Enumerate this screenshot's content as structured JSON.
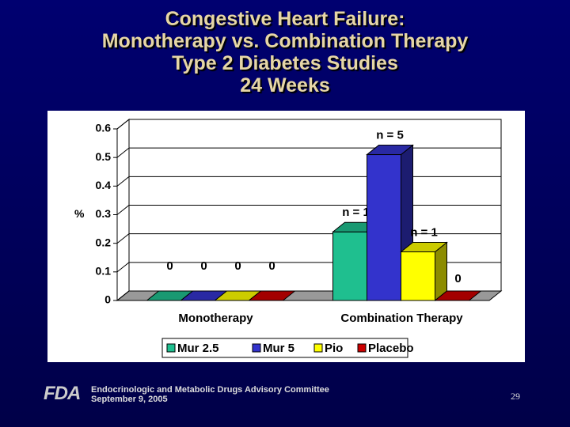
{
  "title": [
    "Congestive Heart Failure:",
    "Monotherapy vs. Combination Therapy",
    "Type 2 Diabetes Studies",
    "24 Weeks"
  ],
  "chart_data": {
    "type": "bar3d",
    "ylabel": "%",
    "categories": [
      "Monotherapy",
      "Combination Therapy"
    ],
    "series": [
      {
        "name": "Mur 2.5",
        "color": "#1fbf8f",
        "values": [
          0,
          0.24
        ],
        "annotations": [
          null,
          "n = 1"
        ]
      },
      {
        "name": "Mur 5",
        "color": "#3333cc",
        "values": [
          0,
          0.51
        ],
        "annotations": [
          null,
          "n = 5"
        ]
      },
      {
        "name": "Pio",
        "color": "#ffff00",
        "values": [
          0,
          0.17
        ],
        "annotations": [
          null,
          "n = 1"
        ]
      },
      {
        "name": "Placebo",
        "color": "#cc0000",
        "values": [
          0,
          0
        ],
        "annotations": [
          null,
          null
        ]
      }
    ],
    "ylim": [
      0,
      0.6
    ],
    "yticks": [
      0,
      0.1,
      0.2,
      0.3,
      0.4,
      0.5,
      0.6
    ],
    "grid": true,
    "legend": "bottom"
  },
  "footer": {
    "logo": "FDA",
    "line1": "Endocrinologic and Metabolic Drugs Advisory Committee",
    "line2": "September 9, 2005",
    "page": "29"
  }
}
